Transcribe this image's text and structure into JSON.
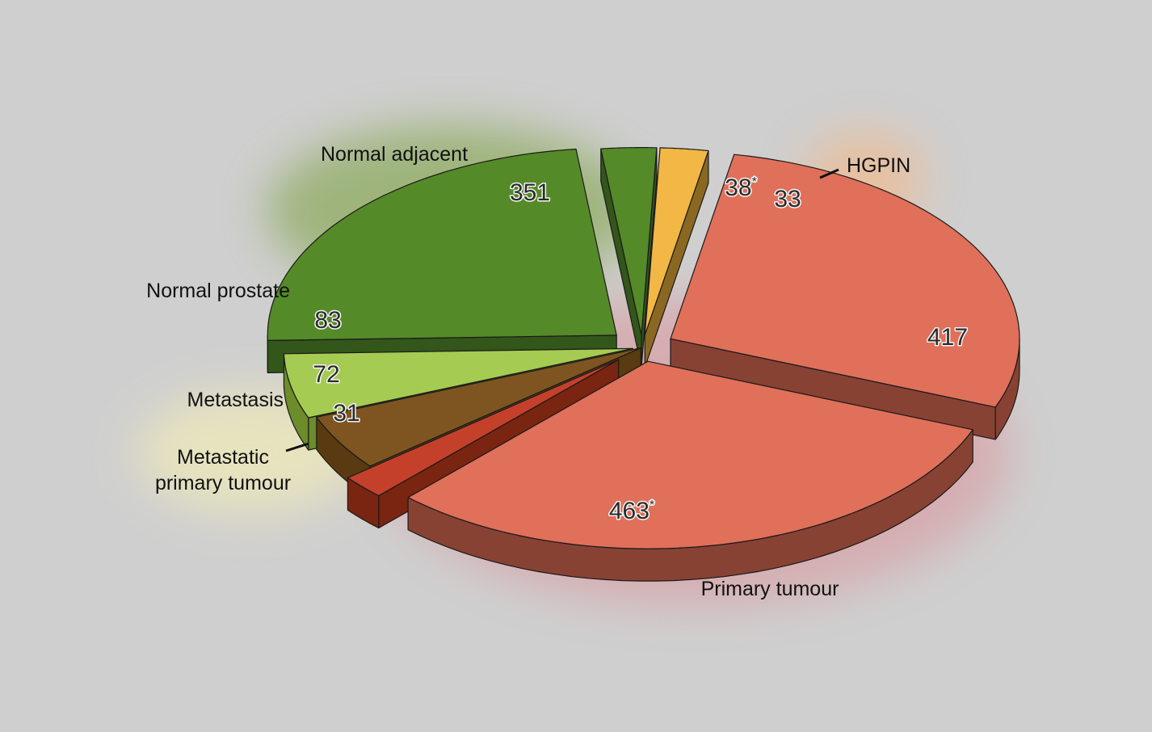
{
  "chart_data": {
    "type": "pie",
    "title": "",
    "slices": [
      {
        "value": 417,
        "value_label": "417",
        "color": "#e0705a",
        "side_color": "#874233"
      },
      {
        "value": 463,
        "value_label": "463",
        "asterisk": "*",
        "color": "#e0705a",
        "side_color": "#874233"
      },
      {
        "value": 31,
        "value_label": "31",
        "color": "#c4402a",
        "side_color": "#7a2412"
      },
      {
        "value": 72,
        "value_label": "72",
        "color": "#7e5520",
        "side_color": "#5a3a10"
      },
      {
        "value": 83,
        "value_label": "83",
        "color": "#a6cb52",
        "side_color": "#6d8c2a"
      },
      {
        "value": 351,
        "value_label": "351",
        "color": "#558a28",
        "side_color": "#33561a"
      },
      {
        "value": 38,
        "value_label": "38",
        "asterisk": "*",
        "color": "#558a28",
        "side_color": "#33561a"
      },
      {
        "value": 33,
        "value_label": "33",
        "color": "#f2b744",
        "side_color": "#8a6822"
      }
    ],
    "groups": [
      {
        "name": "Primary tumour",
        "glow_color": "#e0707a"
      },
      {
        "name": "Metastatic primary tumour",
        "line1": "Metastatic",
        "line2": "primary tumour",
        "glow_color": "#f2ecb8"
      },
      {
        "name": "Metastasis"
      },
      {
        "name": "Normal prostate"
      },
      {
        "name": "Normal adjacent",
        "glow_color": "#6e9a2a"
      },
      {
        "name": "HGPIN",
        "glow_color": "#ffb070"
      }
    ],
    "legend": "none"
  }
}
